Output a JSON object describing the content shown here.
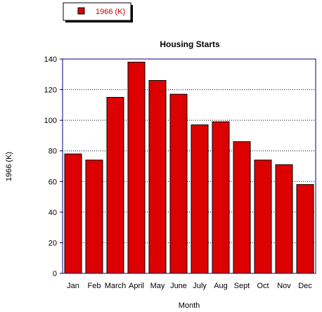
{
  "chart_data": {
    "type": "bar",
    "title": "Housing Starts",
    "xlabel": "Month",
    "ylabel": "1966 (K)",
    "categories": [
      "Jan",
      "Feb",
      "March",
      "April",
      "May",
      "June",
      "July",
      "Aug",
      "Sept",
      "Oct",
      "Nov",
      "Dec"
    ],
    "series": [
      {
        "name": "1966 (K)",
        "values": [
          78,
          74,
          115,
          138,
          126,
          117,
          97,
          99,
          86,
          74,
          71,
          58
        ]
      }
    ],
    "ylim": [
      0,
      140
    ],
    "yticks": [
      0,
      20,
      40,
      60,
      80,
      100,
      120,
      140
    ],
    "grid": true,
    "legend_position": "top-left",
    "colors": {
      "bar_fill": "#dd0000",
      "bar_stroke": "#000000",
      "plot_frame": "#000080",
      "grid": "#000000",
      "legend_text": "#cc0000"
    }
  }
}
